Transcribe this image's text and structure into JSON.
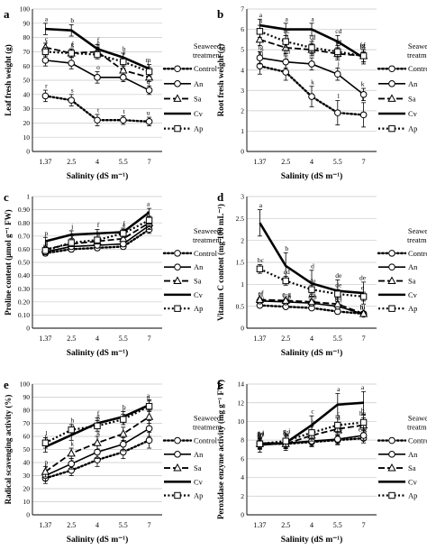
{
  "chart_data": [
    {
      "type": "line",
      "panel_label": "a",
      "ylabel": "Leaf fresh weight (g)",
      "xlabel": "Salinity (dS m⁻¹)",
      "categories": [
        "1.37",
        "2.5",
        "4",
        "5.5",
        "7"
      ],
      "ylim": [
        0,
        100
      ],
      "yticks": [
        "0",
        "10",
        "20",
        "30",
        "40",
        "50",
        "60",
        "70",
        "80",
        "90",
        "100"
      ],
      "legend": {
        "title": [
          "Seaweed",
          "treatment"
        ],
        "entries": [
          "Control",
          "An",
          "Sa",
          "Cv",
          "Ap"
        ]
      },
      "series": [
        {
          "name": "Control",
          "values": [
            39,
            36,
            22,
            22,
            21
          ],
          "errors": [
            4,
            4,
            4,
            3,
            3
          ],
          "letters": [
            "r",
            "s",
            "t",
            "t",
            "u"
          ]
        },
        {
          "name": "An",
          "values": [
            64,
            62,
            52,
            52,
            43
          ],
          "errors": [
            4,
            4,
            4,
            3,
            3
          ],
          "letters": [
            "i",
            "k",
            "o",
            "p",
            "q"
          ]
        },
        {
          "name": "Sa",
          "values": [
            73,
            69,
            70,
            57,
            52
          ],
          "errors": [
            3,
            3,
            3,
            3,
            3
          ],
          "letters": [
            "c",
            "f",
            "e",
            "j",
            "l"
          ]
        },
        {
          "name": "Cv",
          "values": [
            86,
            85,
            72,
            66,
            58
          ],
          "errors": [
            4,
            4,
            3,
            3,
            3
          ],
          "letters": [
            "a",
            "b",
            "f",
            "h",
            "m"
          ]
        },
        {
          "name": "Ap",
          "values": [
            70,
            69,
            68,
            63,
            56
          ],
          "errors": [
            3,
            3,
            3,
            3,
            3
          ],
          "letters": [
            "f",
            "g",
            "g",
            "i",
            "l"
          ]
        }
      ]
    },
    {
      "type": "line",
      "panel_label": "b",
      "ylabel": "Root fresh weight (g)",
      "xlabel": "Salinity (dS m⁻¹)",
      "categories": [
        "1.37",
        "2.5",
        "4",
        "5.5",
        "7"
      ],
      "ylim": [
        0,
        7
      ],
      "yticks": [
        "0",
        "1",
        "2",
        "3",
        "4",
        "5",
        "6",
        "7"
      ],
      "legend": {
        "title": [
          "Seaweed",
          "treatment"
        ],
        "entries": [
          "Control",
          "An",
          "Sa",
          "Cv",
          "Ap"
        ]
      },
      "series": [
        {
          "name": "Control",
          "values": [
            4.2,
            3.9,
            2.7,
            1.9,
            1.8
          ],
          "errors": [
            0.4,
            0.4,
            0.5,
            0.6,
            0.6
          ],
          "letters": [
            "hi",
            "ij",
            "k",
            "l",
            "l"
          ]
        },
        {
          "name": "An",
          "values": [
            4.6,
            4.4,
            4.3,
            3.8,
            2.8
          ],
          "errors": [
            0.3,
            0.3,
            0.3,
            0.3,
            0.3
          ],
          "letters": [
            "fg",
            "gh",
            "h",
            "j",
            "k"
          ]
        },
        {
          "name": "Sa",
          "values": [
            5.5,
            5.1,
            5.0,
            4.8,
            4.7
          ],
          "errors": [
            0.3,
            0.3,
            0.3,
            0.3,
            0.3
          ],
          "letters": [
            "b",
            "d",
            "e",
            "ef",
            "fg"
          ]
        },
        {
          "name": "Cv",
          "values": [
            6.2,
            6.0,
            6.0,
            5.4,
            4.6
          ],
          "errors": [
            0.3,
            0.3,
            0.3,
            0.3,
            0.3
          ],
          "letters": [
            "a",
            "a",
            "a",
            "cd",
            "ef"
          ]
        },
        {
          "name": "Ap",
          "values": [
            5.9,
            5.4,
            5.1,
            4.9,
            4.7
          ],
          "errors": [
            0.3,
            0.3,
            0.3,
            0.3,
            0.3
          ],
          "letters": [
            "a",
            "bc",
            "cd",
            "de",
            "ef"
          ]
        }
      ]
    },
    {
      "type": "line",
      "panel_label": "c",
      "ylabel": "Proline content (μmol g⁻¹ FW)",
      "xlabel": "Salinity (dS m⁻¹)",
      "categories": [
        "1.37",
        "2.5",
        "4",
        "5.5",
        "7"
      ],
      "ylim": [
        0,
        1
      ],
      "yticks": [
        "0",
        "0.10",
        "0.20",
        "0.30",
        "0.40",
        "0.50",
        "0.60",
        "0.70",
        "0.80",
        "0.90",
        "1"
      ],
      "legend": {
        "title": [
          "Seaweed",
          "treatment"
        ],
        "entries": [
          "Control",
          "An",
          "Sa",
          "Cv",
          "Ap"
        ]
      },
      "series": [
        {
          "name": "Control",
          "values": [
            0.57,
            0.6,
            0.61,
            0.62,
            0.75
          ],
          "errors": [
            0.02,
            0.02,
            0.02,
            0.02,
            0.03
          ],
          "letters": [
            "s",
            "o",
            "n",
            "l",
            "d"
          ]
        },
        {
          "name": "An",
          "values": [
            0.58,
            0.62,
            0.63,
            0.64,
            0.78
          ],
          "errors": [
            0.02,
            0.02,
            0.02,
            0.02,
            0.03
          ],
          "letters": [
            "r",
            "m",
            "j",
            "i",
            "c"
          ]
        },
        {
          "name": "Sa",
          "values": [
            0.6,
            0.64,
            0.66,
            0.68,
            0.8
          ],
          "errors": [
            0.02,
            0.02,
            0.02,
            0.02,
            0.03
          ],
          "letters": [
            "q",
            "k",
            "h",
            "g",
            "b"
          ]
        },
        {
          "name": "Cv",
          "values": [
            0.66,
            0.71,
            0.72,
            0.73,
            0.88
          ],
          "errors": [
            0.03,
            0.03,
            0.03,
            0.03,
            0.03
          ],
          "letters": [
            "p",
            "j",
            "f",
            "f",
            "a"
          ]
        },
        {
          "name": "Ap",
          "values": [
            0.59,
            0.65,
            0.67,
            0.72,
            0.82
          ],
          "errors": [
            0.02,
            0.02,
            0.02,
            0.03,
            0.03
          ],
          "letters": [
            "r",
            "l",
            "h",
            "e",
            "c"
          ]
        }
      ]
    },
    {
      "type": "line",
      "panel_label": "d",
      "ylabel": "Vitamin C content (mg 100 mL⁻¹)",
      "xlabel": "Salinity (dS m⁻¹)",
      "categories": [
        "1.37",
        "2.5",
        "4",
        "5.5",
        "7"
      ],
      "ylim": [
        0,
        3
      ],
      "yticks": [
        "0",
        "0.5",
        "1",
        "1.5",
        "2",
        "2.5",
        "3"
      ],
      "legend": {
        "title": [
          "Seaweed",
          "treatment"
        ],
        "entries": [
          "Control",
          "An",
          "Sa",
          "Cv",
          "Ap"
        ]
      },
      "series": [
        {
          "name": "Control",
          "values": [
            0.52,
            0.49,
            0.46,
            0.38,
            0.33
          ],
          "errors": [
            0.05,
            0.05,
            0.05,
            0.05,
            0.05
          ],
          "letters": [
            "e-i",
            "f-i",
            "f-i",
            "g-i",
            "i"
          ]
        },
        {
          "name": "An",
          "values": [
            0.62,
            0.6,
            0.57,
            0.5,
            0.32
          ],
          "errors": [
            0.05,
            0.05,
            0.05,
            0.05,
            0.05
          ],
          "letters": [
            "ef",
            "e-g",
            "e-h",
            "e-i",
            "hi"
          ]
        },
        {
          "name": "Sa",
          "values": [
            0.65,
            0.63,
            0.6,
            0.55,
            0.33
          ],
          "errors": [
            0.05,
            0.05,
            0.05,
            0.05,
            0.05
          ],
          "letters": [
            "ef",
            "e-g",
            "e-i",
            "e-i",
            "hi"
          ]
        },
        {
          "name": "Cv",
          "values": [
            2.4,
            1.42,
            1.02,
            0.85,
            0.8
          ],
          "errors": [
            0.3,
            0.3,
            0.3,
            0.25,
            0.25
          ],
          "letters": [
            "a",
            "b",
            "d",
            "de",
            "de"
          ]
        },
        {
          "name": "Ap",
          "values": [
            1.35,
            1.08,
            0.88,
            0.78,
            0.72
          ],
          "errors": [
            0.1,
            0.1,
            0.1,
            0.1,
            0.1
          ],
          "letters": [
            "bc",
            "cd",
            "de",
            "de",
            "e"
          ]
        }
      ]
    },
    {
      "type": "line",
      "panel_label": "e",
      "ylabel": "Radical scavenging activity (%)",
      "xlabel": "Salinity (dS m⁻¹)",
      "categories": [
        "1.37",
        "2.5",
        "4",
        "5.5",
        "7"
      ],
      "ylim": [
        0,
        100
      ],
      "yticks": [
        "0",
        "10",
        "20",
        "30",
        "40",
        "50",
        "60",
        "70",
        "80",
        "90",
        "100"
      ],
      "legend": {
        "title": [
          "Seaweed",
          "treatment"
        ],
        "entries": [
          "Control",
          "An",
          "Sa",
          "Cv",
          "Ap"
        ]
      },
      "series": [
        {
          "name": "Control",
          "values": [
            28,
            34,
            42,
            48,
            57
          ],
          "errors": [
            4,
            4,
            5,
            5,
            6
          ],
          "letters": [
            "t",
            "r",
            "q",
            "m",
            "i"
          ]
        },
        {
          "name": "An",
          "values": [
            30,
            39,
            48,
            54,
            66
          ],
          "errors": [
            4,
            4,
            5,
            5,
            6
          ],
          "letters": [
            "s",
            "n",
            "j",
            "h",
            "c"
          ]
        },
        {
          "name": "Sa",
          "values": [
            33,
            47,
            55,
            62,
            75
          ],
          "errors": [
            4,
            4,
            5,
            5,
            5
          ],
          "letters": [
            "p",
            "k",
            "g",
            "f",
            "b"
          ]
        },
        {
          "name": "Cv",
          "values": [
            52,
            61,
            70,
            75,
            84
          ],
          "errors": [
            4,
            4,
            4,
            4,
            4
          ],
          "letters": [
            "k",
            "h",
            "f",
            "b",
            "a"
          ]
        },
        {
          "name": "Ap",
          "values": [
            55,
            65,
            68,
            73,
            83
          ],
          "errors": [
            4,
            4,
            4,
            4,
            4
          ],
          "letters": [
            "l",
            "h",
            "g",
            "c",
            "a"
          ]
        }
      ]
    },
    {
      "type": "line",
      "panel_label": "f",
      "ylabel": "Peroxidase enzyme activity (mg g⁻¹ FW)",
      "xlabel": "Salinity (dS m⁻¹)",
      "categories": [
        "1.37",
        "2.5",
        "4",
        "5.5",
        "7"
      ],
      "ylim": [
        0,
        14
      ],
      "yticks": [
        "0",
        "2",
        "4",
        "6",
        "8",
        "10",
        "12",
        "14"
      ],
      "legend": {
        "title": [
          "Seaweed",
          "treatment"
        ],
        "entries": [
          "Control",
          "An",
          "Sa",
          "Cv",
          "Ap"
        ]
      },
      "series": [
        {
          "name": "Control",
          "values": [
            7.6,
            7.6,
            7.8,
            8.0,
            8.2
          ],
          "errors": [
            0.5,
            0.5,
            0.5,
            0.5,
            0.5
          ],
          "letters": [
            "hi",
            "hi",
            "hi",
            "f-i",
            "e-g"
          ]
        },
        {
          "name": "An",
          "values": [
            7.7,
            7.7,
            7.9,
            8.1,
            8.5
          ],
          "errors": [
            0.5,
            0.5,
            0.5,
            0.5,
            0.5
          ],
          "letters": [
            "hi",
            "hi",
            "h",
            "f-g",
            "e"
          ]
        },
        {
          "name": "Sa",
          "values": [
            7.6,
            7.6,
            8.5,
            9.2,
            9.6
          ],
          "errors": [
            0.5,
            0.5,
            0.6,
            0.7,
            0.8
          ],
          "letters": [
            "hi",
            "h",
            "f",
            "d",
            "bc"
          ]
        },
        {
          "name": "Cv",
          "values": [
            7.5,
            7.7,
            9.6,
            11.8,
            12.0
          ],
          "errors": [
            0.8,
            0.8,
            1.0,
            1.2,
            1.2
          ],
          "letters": [
            "g-i",
            "g-i",
            "c",
            "a",
            "a"
          ]
        },
        {
          "name": "Ap",
          "values": [
            7.6,
            7.9,
            8.8,
            9.6,
            9.9
          ],
          "errors": [
            0.6,
            0.6,
            0.7,
            0.8,
            0.8
          ],
          "letters": [
            "g-i",
            "g-i",
            "e",
            "c",
            "b"
          ]
        }
      ]
    }
  ]
}
